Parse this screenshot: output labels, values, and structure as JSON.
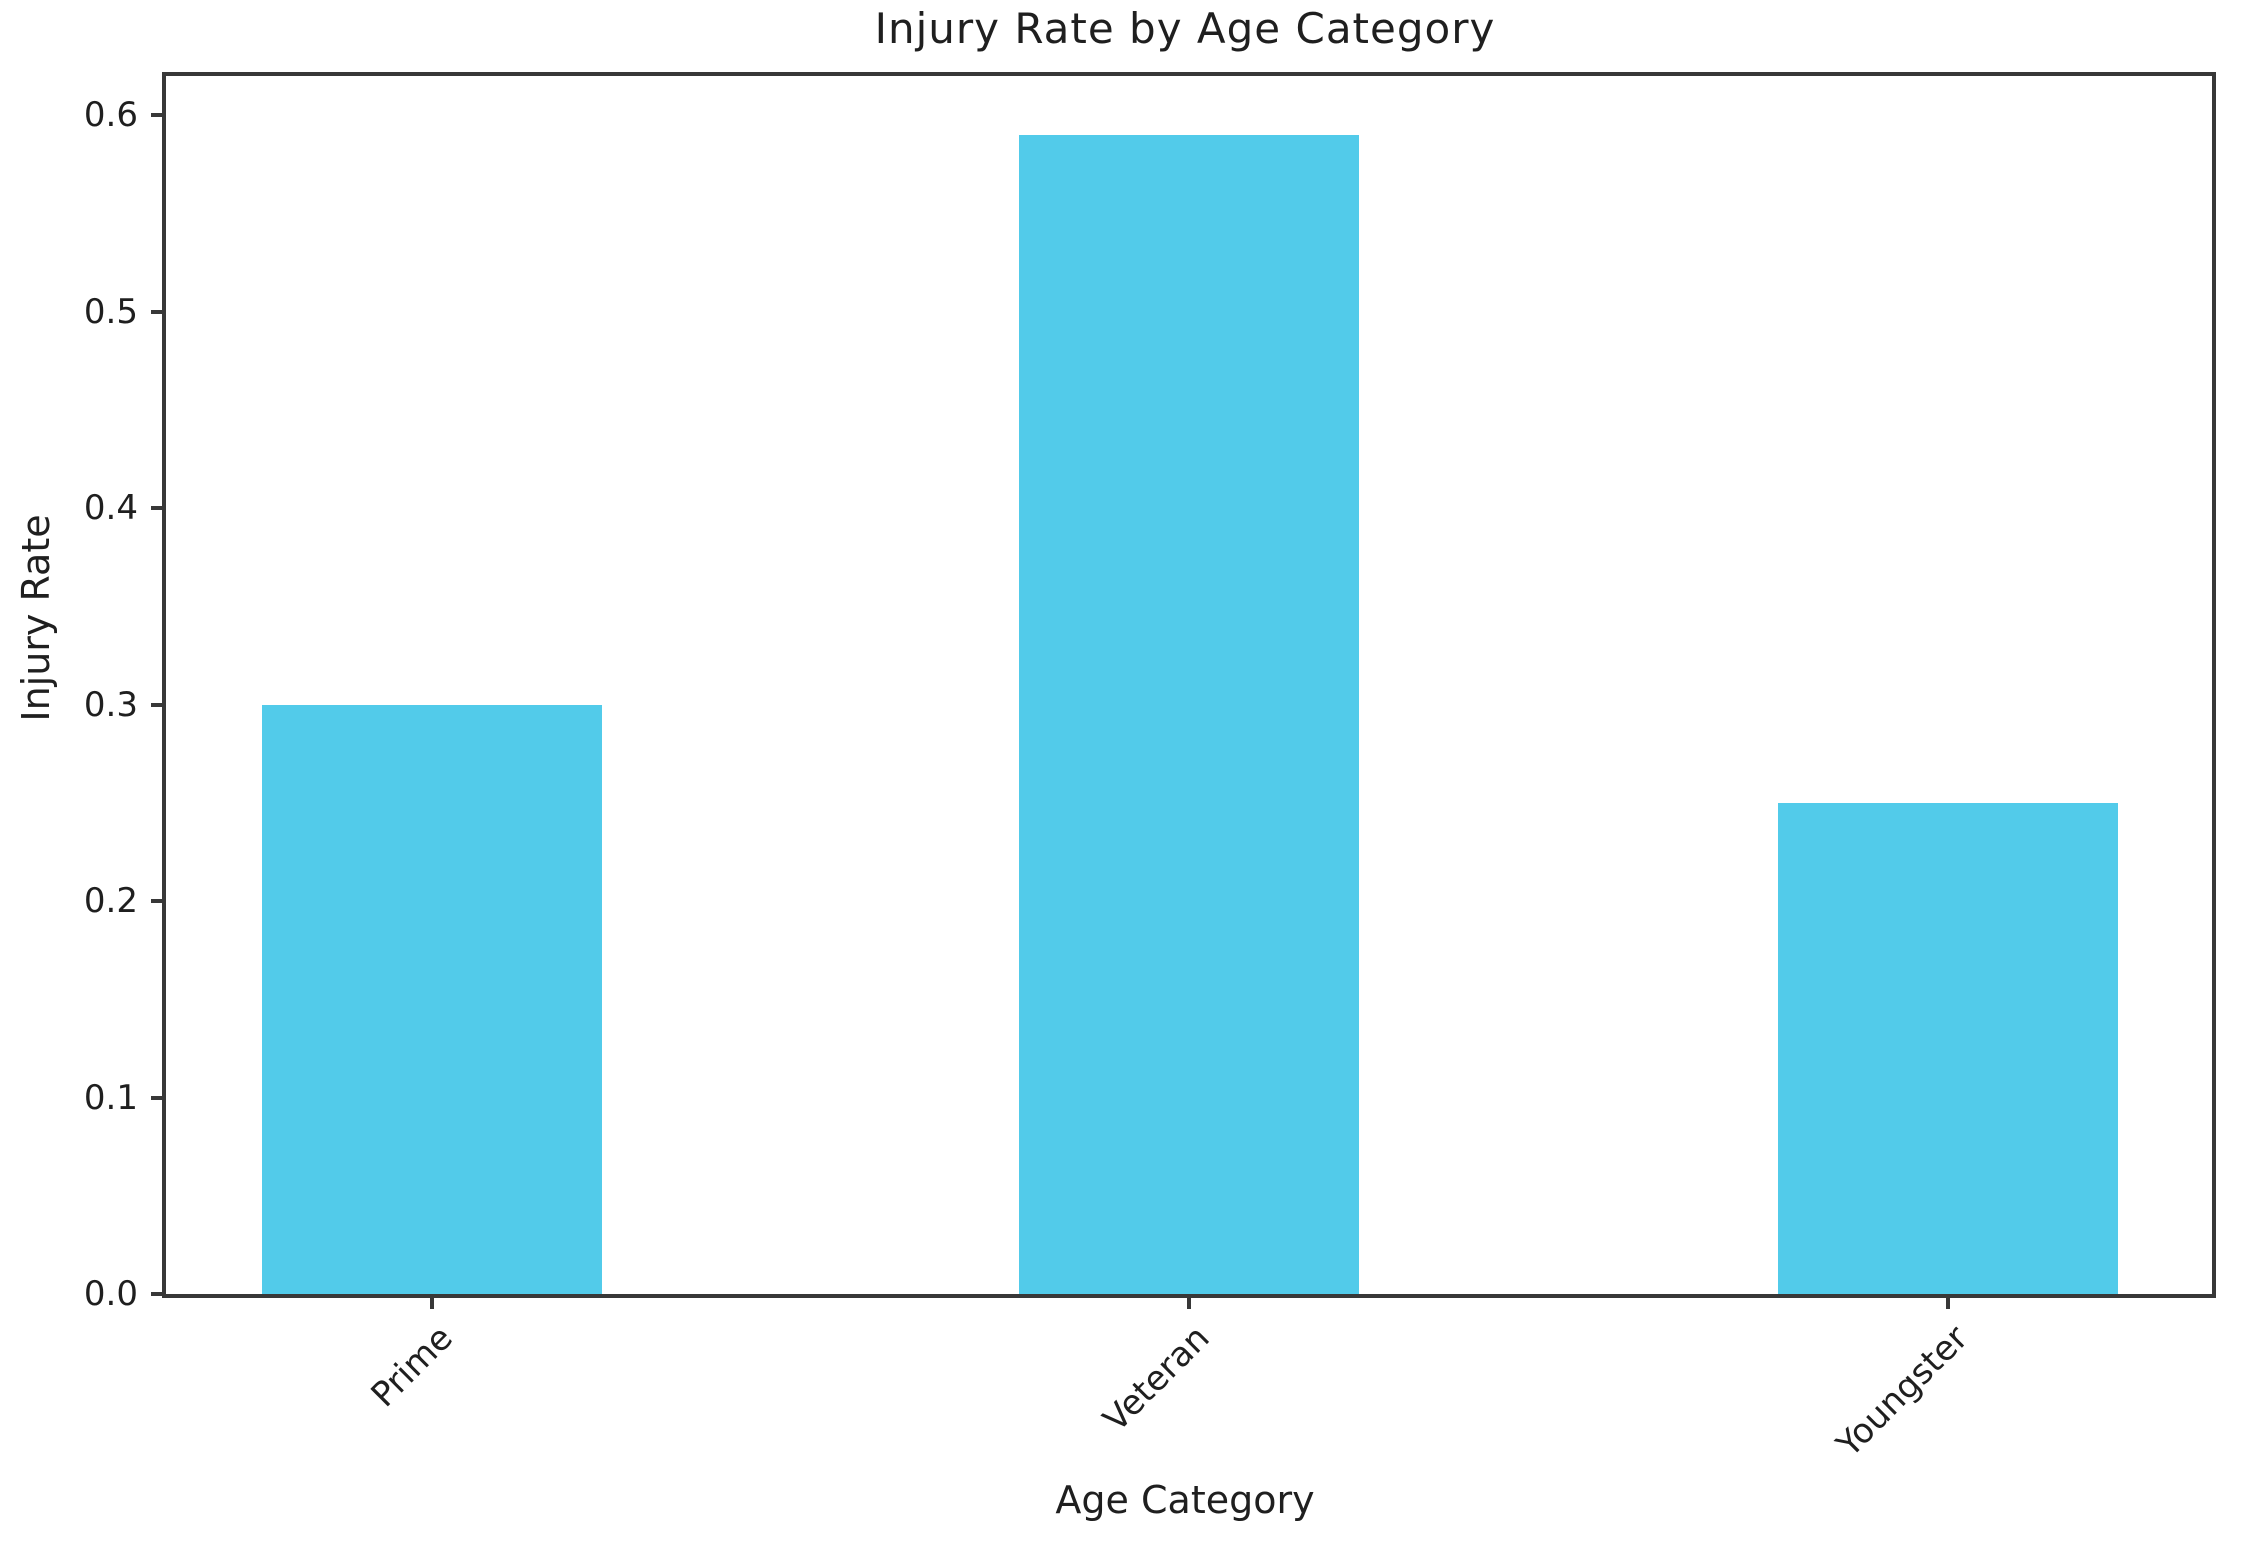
{
  "chart_data": {
    "type": "bar",
    "title": "Injury Rate by Age Category",
    "xlabel": "Age Category",
    "ylabel": "Injury Rate",
    "categories": [
      "Prime",
      "Veteran",
      "Youngster"
    ],
    "values": [
      0.3,
      0.59,
      0.25
    ],
    "yticks": [
      0.0,
      0.1,
      0.2,
      0.3,
      0.4,
      0.5,
      0.6
    ],
    "ytick_labels": [
      "0.0",
      "0.1",
      "0.2",
      "0.3",
      "0.4",
      "0.5",
      "0.6"
    ],
    "ylim": [
      0,
      0.62
    ],
    "bar_color": "#52cbea",
    "axis_color": "#383838",
    "text_color": "#1f1f1f",
    "grid": false,
    "legend": "none",
    "xtick_rotation_deg": 45,
    "bar_centers_frac": [
      0.13,
      0.5,
      0.871
    ],
    "bar_width_frac": 0.166
  }
}
